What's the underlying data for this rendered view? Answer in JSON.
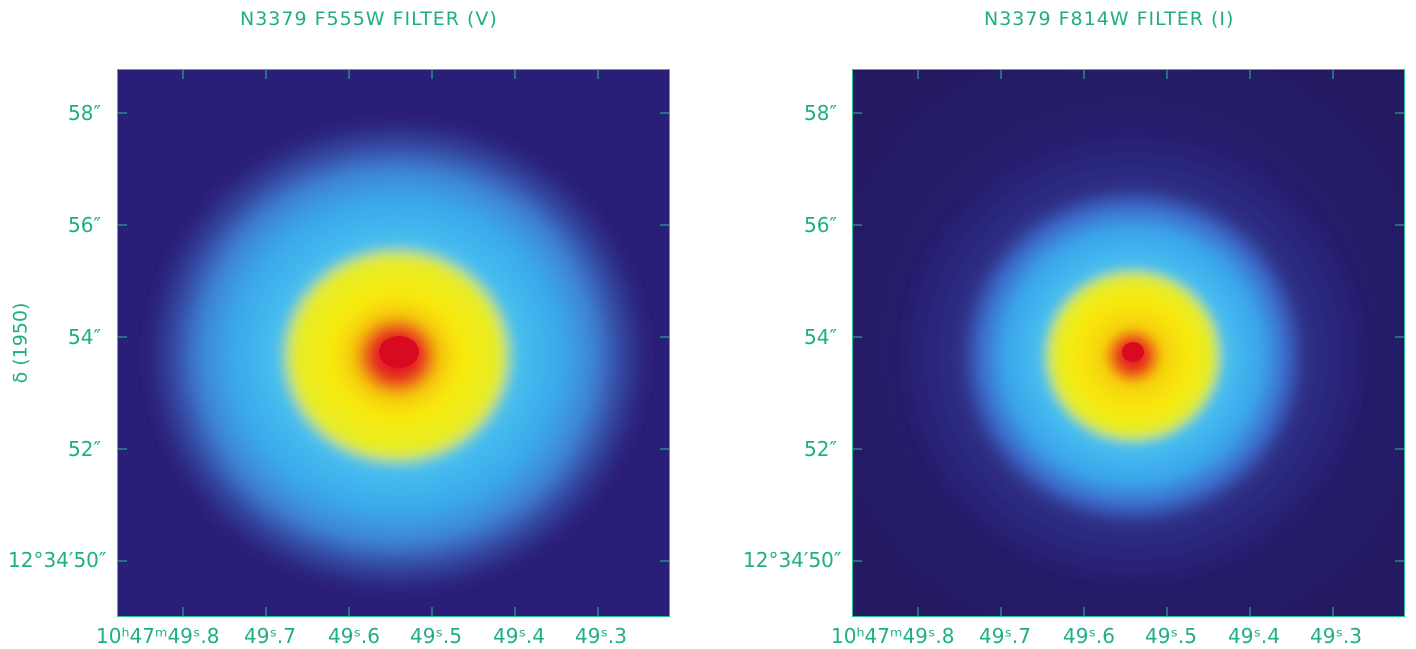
{
  "panels": [
    {
      "title": "N3379 F555W FILTER (V)",
      "y_axis_title": "δ (1950)",
      "y_ticks": [
        "58″",
        "56″",
        "54″",
        "52″",
        "12°34′50″"
      ],
      "x_ticks": [
        "10ʰ47ᵐ49ˢ.8",
        "49ˢ.7",
        "49ˢ.6",
        "49ˢ.5",
        "49ˢ.4",
        "49ˢ.3"
      ]
    },
    {
      "title": "N3379 F814W FILTER (I)",
      "y_ticks": [
        "58″",
        "56″",
        "54″",
        "52″",
        "12°34′50″"
      ],
      "x_ticks": [
        "10ʰ47ᵐ49ˢ.8",
        "49ˢ.7",
        "49ˢ.6",
        "49ˢ.5",
        "49ˢ.4",
        "49ˢ.3"
      ]
    }
  ],
  "colors": {
    "axis": "#1fae86",
    "background_field": "#2a1f78",
    "blue_halo": "#3fb6ee",
    "yellow_core": "#f6e60a",
    "red_nucleus": "#e0142c"
  }
}
